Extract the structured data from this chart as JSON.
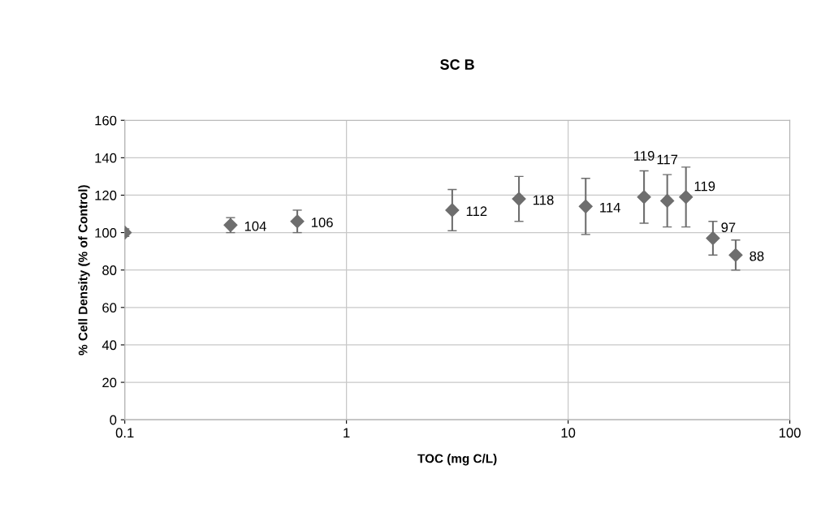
{
  "chart_data": {
    "type": "scatter",
    "title": "SC B",
    "xlabel": "TOC (mg C/L)",
    "ylabel": "% Cell Density (% of Control)",
    "x": [
      0.1,
      0.3,
      0.6,
      3,
      6,
      12,
      22,
      28,
      34,
      45,
      57
    ],
    "values": [
      100,
      104,
      106,
      112,
      118,
      114,
      119,
      117,
      119,
      97,
      88
    ],
    "errors": [
      2,
      4,
      6,
      11,
      12,
      15,
      14,
      14,
      16,
      9,
      8
    ],
    "value_labels": [
      null,
      "104",
      "106",
      "112",
      "118",
      "114",
      "119",
      "117",
      "119",
      "97",
      "88"
    ],
    "color": "#6e6e6e",
    "marker": "diamond",
    "log": "x",
    "xlim": [
      0.1,
      100
    ],
    "xticks": [
      0.1,
      1,
      10,
      100
    ],
    "ylim": [
      0,
      160
    ],
    "yticks": [
      0,
      20,
      40,
      60,
      80,
      100,
      120,
      140,
      160
    ],
    "grid": true
  }
}
